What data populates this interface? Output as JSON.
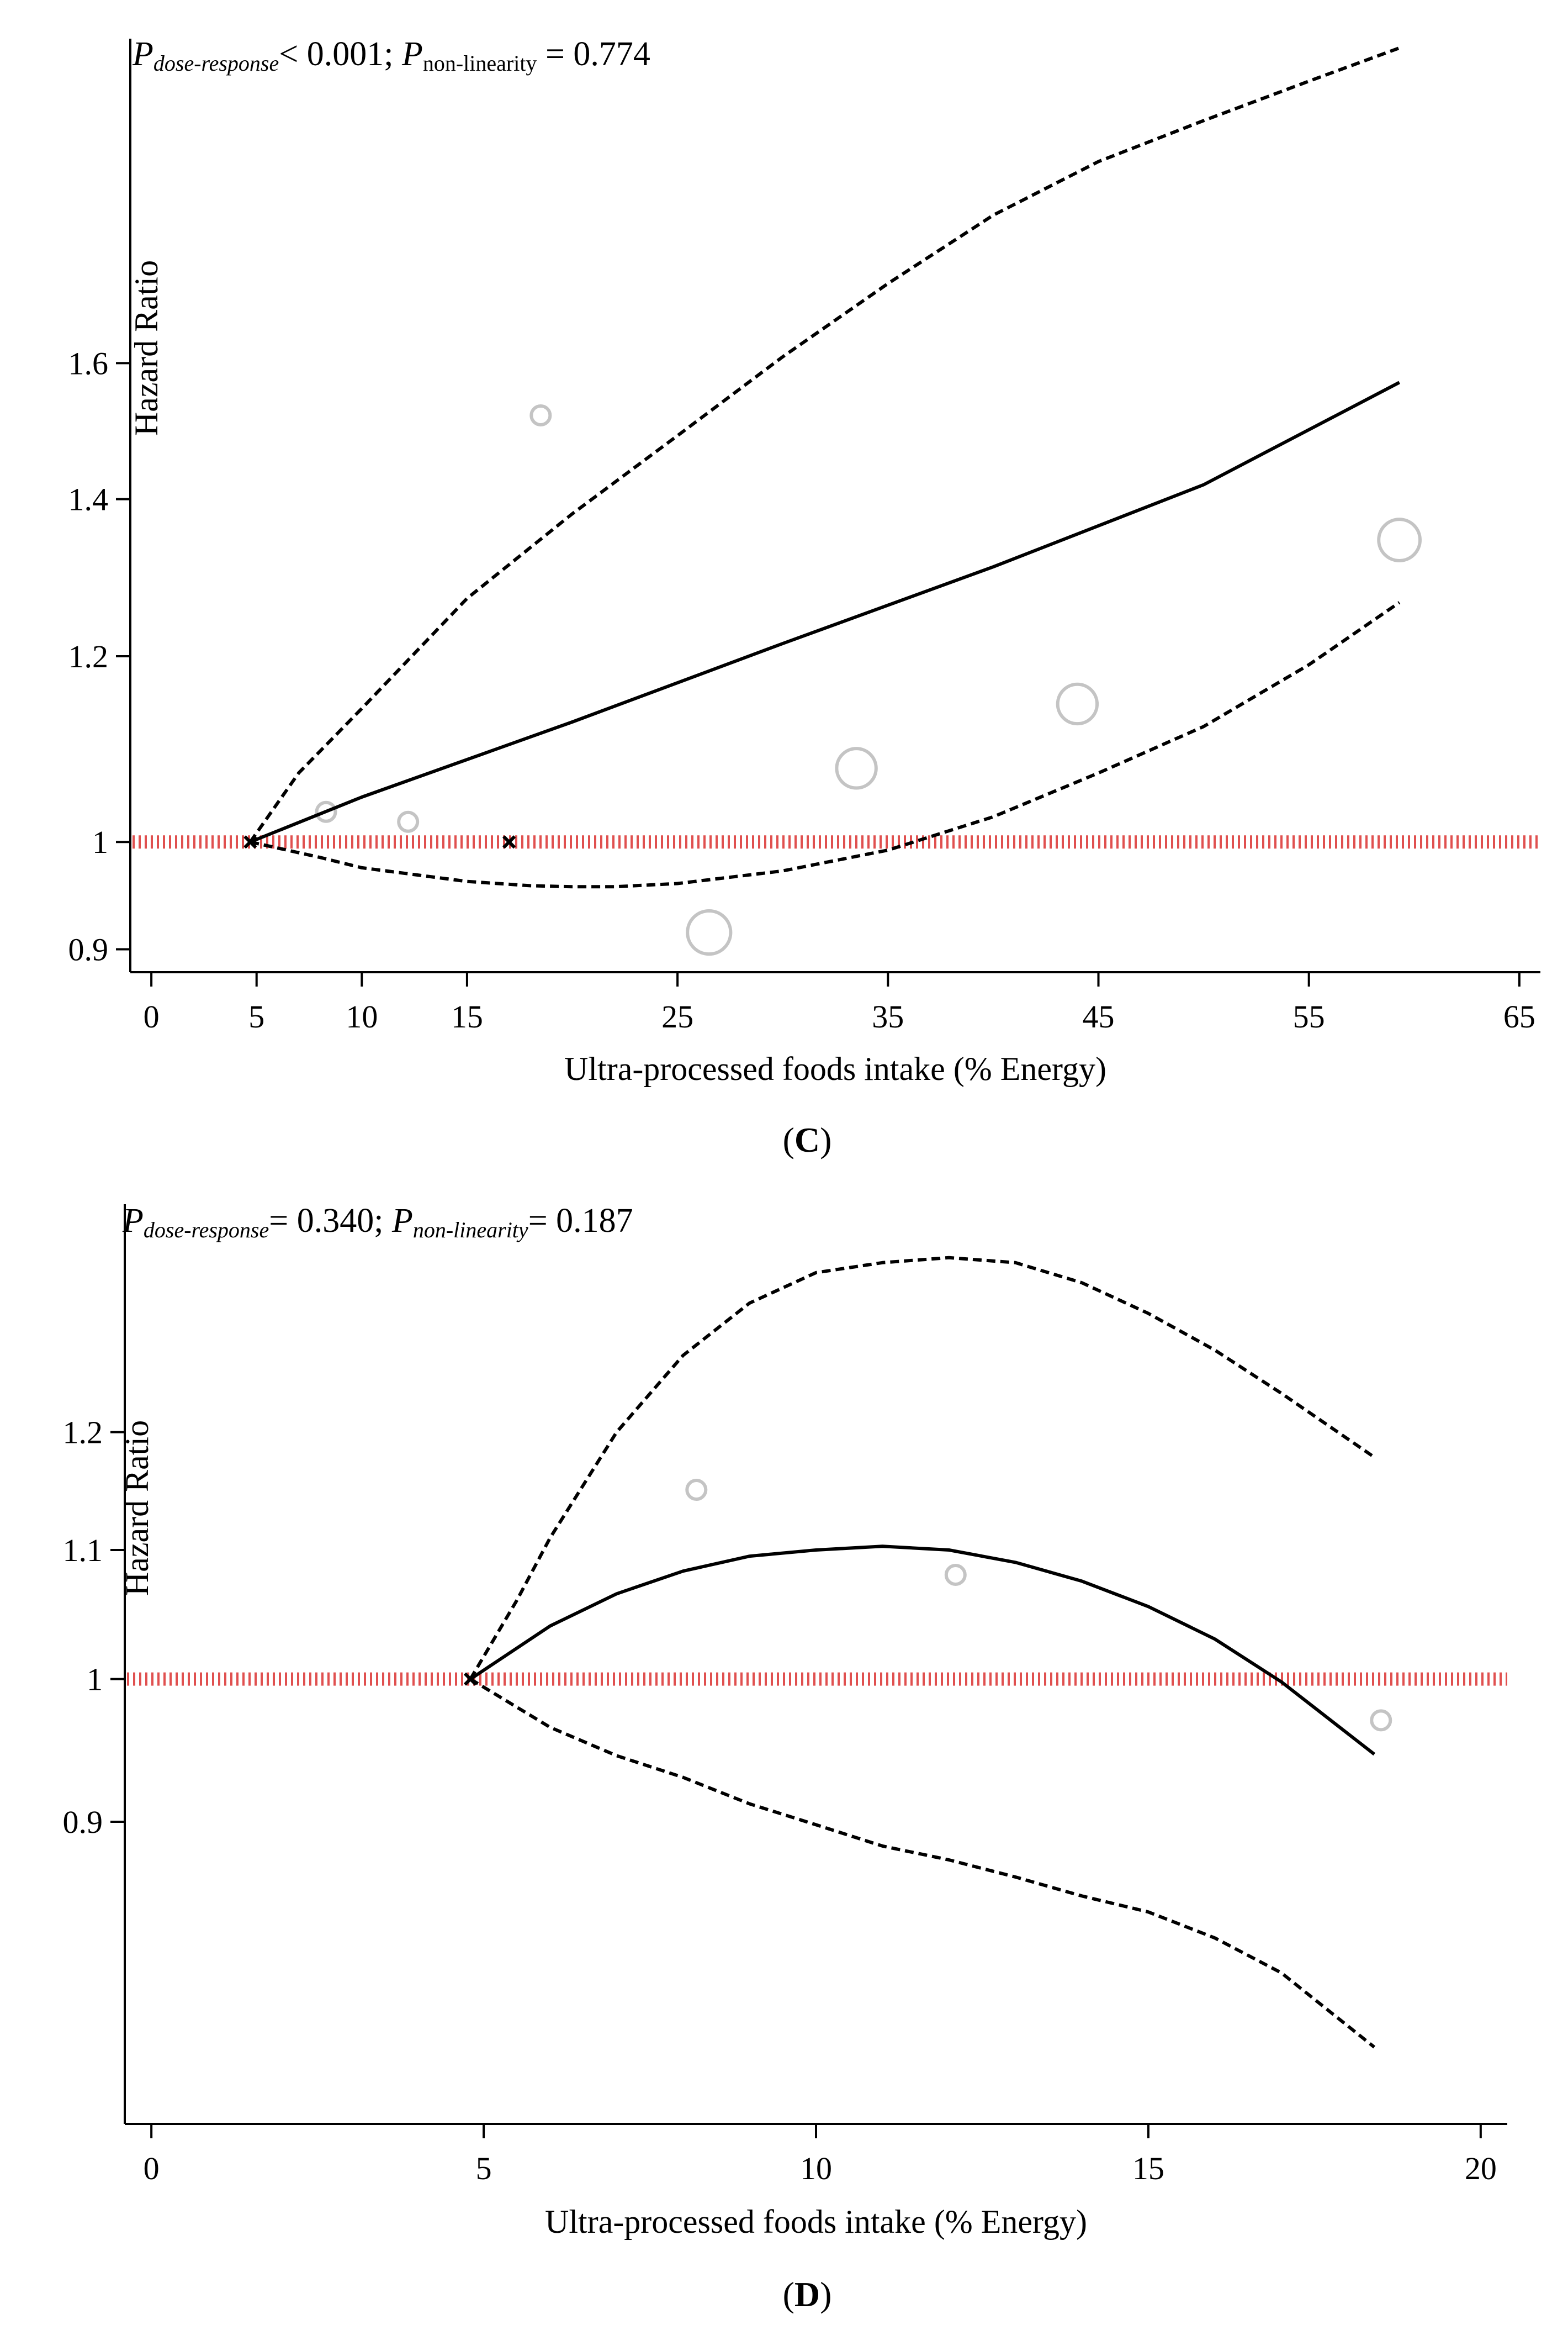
{
  "chart_data": [
    {
      "type": "line",
      "panel": "C",
      "panel_label_prefix": "(",
      "panel_label_suffix": ")",
      "annotation": {
        "p_dose_letter": "P",
        "p_dose_sub": "dose-response",
        "p_dose_rest": "< 0.001; ",
        "p_nl_letter": "P",
        "p_nl_sub": "non-linearity",
        "p_nl_rest": " = 0.774"
      },
      "xlabel": "Ultra-processed foods intake (% Energy)",
      "ylabel": "Hazard Ratio",
      "scale": "log",
      "xlim": [
        -1,
        66
      ],
      "ylim": [
        0.88,
        2.2
      ],
      "xticks": [
        0,
        5,
        10,
        15,
        25,
        35,
        45,
        55,
        65
      ],
      "yticks": [
        0.9,
        1,
        1.2,
        1.4,
        1.6
      ],
      "ytick_labels": [
        "0.9",
        "1",
        "1.2",
        "1.4",
        "1.6"
      ],
      "reference_line": 1,
      "series": [
        {
          "name": "estimate",
          "style": "solid",
          "x": [
            4.7,
            10,
            20,
            30,
            40,
            50,
            59.3
          ],
          "y": [
            1.0,
            1.045,
            1.125,
            1.215,
            1.31,
            1.42,
            1.57
          ]
        },
        {
          "name": "upper CI",
          "style": "dashed",
          "x": [
            4.7,
            7,
            10,
            15,
            20,
            25,
            30,
            35,
            40,
            45,
            50,
            55,
            59.3
          ],
          "y": [
            1.0,
            1.07,
            1.14,
            1.27,
            1.38,
            1.49,
            1.61,
            1.73,
            1.85,
            1.95,
            2.03,
            2.11,
            2.18
          ]
        },
        {
          "name": "lower CI",
          "style": "dashed",
          "x": [
            4.7,
            8,
            10,
            15,
            18,
            20,
            22,
            25,
            30,
            35,
            40,
            45,
            50,
            55,
            59.3
          ],
          "y": [
            1.0,
            0.985,
            0.975,
            0.962,
            0.958,
            0.957,
            0.957,
            0.96,
            0.972,
            0.992,
            1.025,
            1.07,
            1.12,
            1.19,
            1.265
          ]
        }
      ],
      "study_points": [
        {
          "x": 8.3,
          "y": 1.03,
          "size": 1
        },
        {
          "x": 12.2,
          "y": 1.02,
          "size": 1
        },
        {
          "x": 18.5,
          "y": 1.52,
          "size": 1
        },
        {
          "x": 26.5,
          "y": 0.915,
          "size": 2.3
        },
        {
          "x": 33.5,
          "y": 1.075,
          "size": 2.1
        },
        {
          "x": 44,
          "y": 1.145,
          "size": 2.1
        },
        {
          "x": 59.3,
          "y": 1.345,
          "size": 2.2
        }
      ],
      "knots": [
        {
          "x": 4.7,
          "y": 1
        },
        {
          "x": 17,
          "y": 1
        }
      ]
    },
    {
      "type": "line",
      "panel": "D",
      "panel_label_prefix": "(",
      "panel_label_suffix": ")",
      "annotation": {
        "p_dose_letter": "P",
        "p_dose_sub": "dose-response",
        "p_dose_rest": "= 0.340; ",
        "p_nl_letter": "P",
        "p_nl_sub": "non-linearity",
        "p_nl_rest": "= 0.187"
      },
      "xlabel": "Ultra-processed foods intake (% Energy)",
      "ylabel": "Hazard Ratio",
      "scale": "log",
      "xlim": [
        -0.4,
        20.4
      ],
      "ylim": [
        0.72,
        1.42
      ],
      "xticks": [
        0,
        5,
        10,
        15,
        20
      ],
      "yticks": [
        0.9,
        1,
        1.1,
        1.2
      ],
      "ytick_labels": [
        "0.9",
        "1",
        "1.1",
        "1.2"
      ],
      "reference_line": 1,
      "series": [
        {
          "name": "estimate",
          "style": "solid",
          "x": [
            4.8,
            6,
            7,
            8,
            9,
            10,
            11,
            12,
            13,
            14,
            15,
            16,
            17,
            18.4
          ],
          "y": [
            1.0,
            1.04,
            1.065,
            1.083,
            1.095,
            1.1,
            1.103,
            1.1,
            1.09,
            1.075,
            1.055,
            1.03,
            0.998,
            0.946
          ]
        },
        {
          "name": "upper CI",
          "style": "dashed",
          "x": [
            4.8,
            5.5,
            6,
            7,
            8,
            9,
            10,
            11,
            12,
            13,
            14,
            15,
            16,
            17,
            18.4
          ],
          "y": [
            1.0,
            1.06,
            1.11,
            1.2,
            1.27,
            1.32,
            1.35,
            1.36,
            1.365,
            1.36,
            1.34,
            1.31,
            1.275,
            1.235,
            1.178
          ]
        },
        {
          "name": "lower CI",
          "style": "dashed",
          "x": [
            4.8,
            6,
            7,
            8,
            9,
            10,
            11,
            12,
            13,
            14,
            15,
            16,
            17,
            18.4
          ],
          "y": [
            1.0,
            0.965,
            0.945,
            0.93,
            0.912,
            0.898,
            0.884,
            0.875,
            0.864,
            0.852,
            0.842,
            0.826,
            0.805,
            0.762
          ]
        }
      ],
      "study_points": [
        {
          "x": 8.2,
          "y": 1.15,
          "size": 1
        },
        {
          "x": 12.1,
          "y": 1.08,
          "size": 1
        },
        {
          "x": 18.5,
          "y": 0.97,
          "size": 1
        }
      ],
      "knots": [
        {
          "x": 4.8,
          "y": 1
        }
      ]
    }
  ]
}
